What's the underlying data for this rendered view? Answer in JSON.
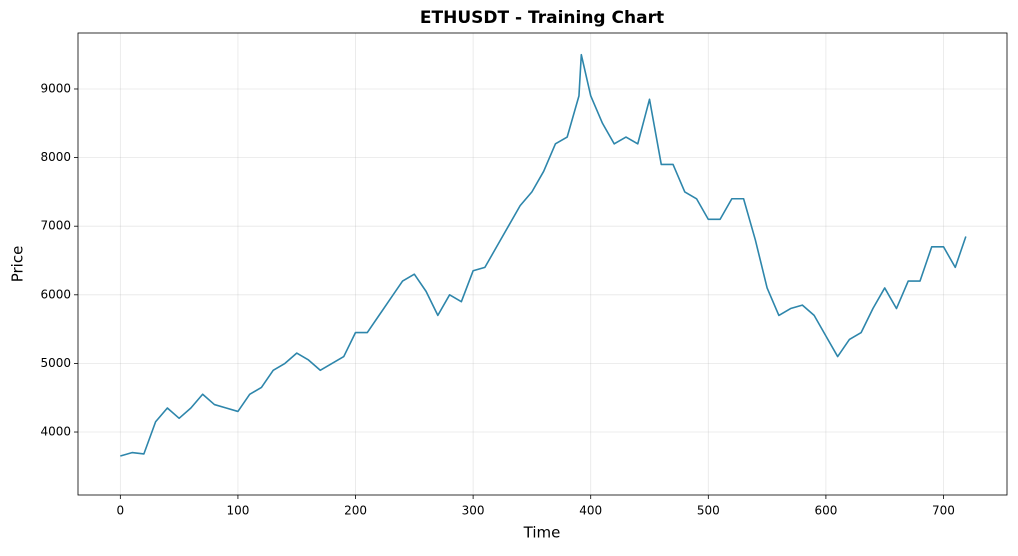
{
  "chart_data": {
    "type": "line",
    "title": "ETHUSDT - Training Chart",
    "x_label": "Time",
    "y_label": "Price",
    "x": [
      0,
      10,
      20,
      30,
      40,
      50,
      60,
      70,
      80,
      90,
      100,
      110,
      120,
      130,
      140,
      150,
      160,
      170,
      180,
      190,
      200,
      210,
      220,
      230,
      240,
      250,
      260,
      270,
      280,
      290,
      300,
      310,
      320,
      330,
      340,
      350,
      360,
      370,
      380,
      390,
      392,
      400,
      410,
      420,
      430,
      440,
      450,
      460,
      470,
      480,
      490,
      500,
      510,
      520,
      530,
      540,
      550,
      560,
      570,
      580,
      590,
      600,
      610,
      620,
      630,
      640,
      650,
      660,
      670,
      680,
      690,
      700,
      710,
      719
    ],
    "series": [
      {
        "name": "ETHUSDT",
        "color": "#2e86ab",
        "values": [
          3650,
          3700,
          3680,
          4150,
          4350,
          4200,
          4350,
          4550,
          4400,
          4350,
          4300,
          4550,
          4650,
          4900,
          5000,
          5150,
          5050,
          4900,
          5000,
          5100,
          5450,
          5450,
          5700,
          5950,
          6200,
          6300,
          6050,
          5700,
          6000,
          5900,
          6350,
          6400,
          6700,
          7000,
          7300,
          7500,
          7800,
          8200,
          8300,
          8900,
          9500,
          8900,
          8500,
          8200,
          8300,
          8200,
          8850,
          7900,
          7900,
          7500,
          7400,
          7100,
          7100,
          7400,
          7400,
          6800,
          6100,
          5700,
          5800,
          5850,
          5700,
          5400,
          5100,
          5350,
          5450,
          5800,
          6100,
          5800,
          6200,
          6200,
          6700,
          6700,
          6400,
          6850
        ]
      }
    ],
    "xlim": [
      -36,
      754
    ],
    "ylim": [
      3082,
      9816
    ],
    "xticks": [
      0,
      100,
      200,
      300,
      400,
      500,
      600,
      700
    ],
    "yticks": [
      4000,
      5000,
      6000,
      7000,
      8000,
      9000
    ],
    "grid": true
  }
}
